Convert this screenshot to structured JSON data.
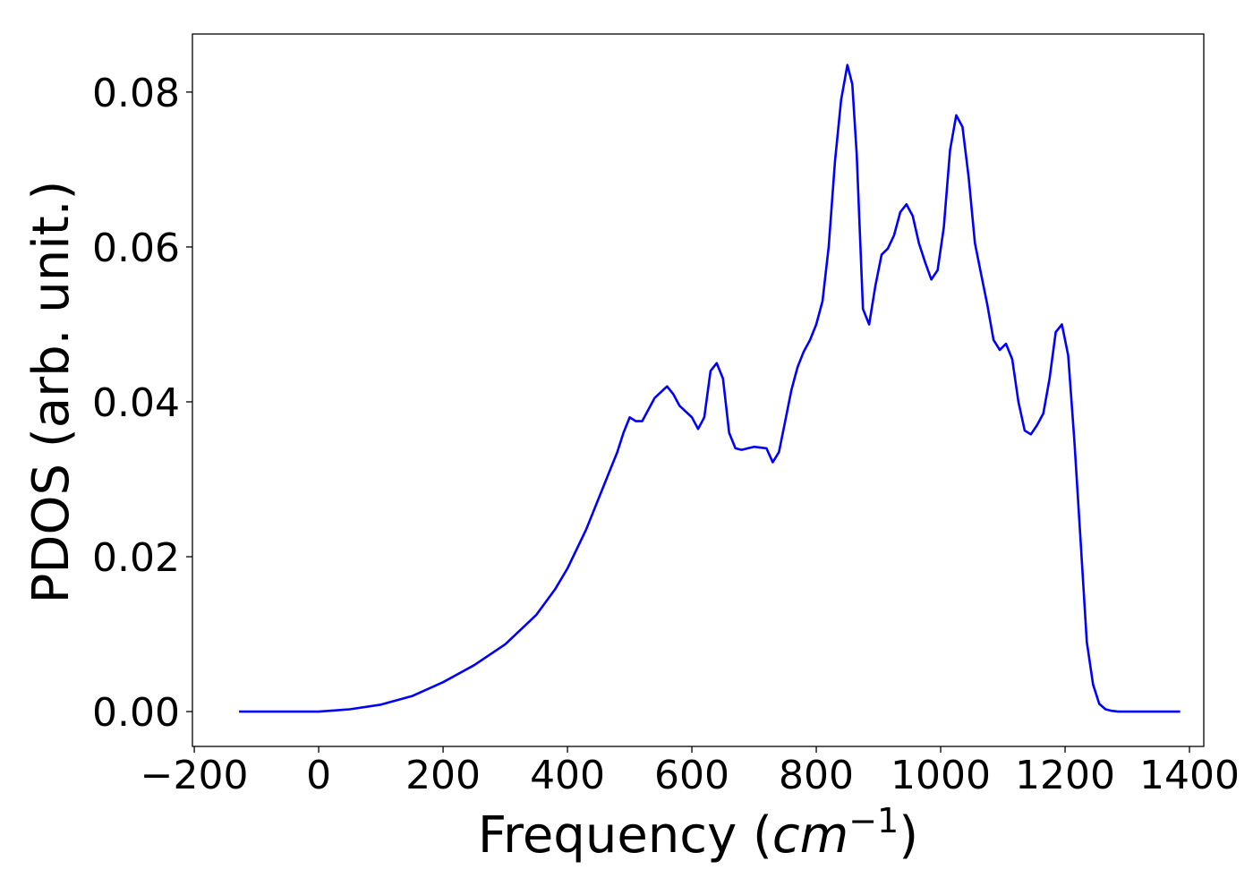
{
  "chart_data": {
    "type": "line",
    "title": "",
    "xlabel_text": "Frequency (",
    "xlabel_unit": "cm",
    "xlabel_exp": "−1",
    "xlabel_close": ")",
    "ylabel": "PDOS (arb. unit.)",
    "xlim": [
      -203,
      1423
    ],
    "ylim": [
      -0.0045,
      0.0875
    ],
    "xticks": [
      -200,
      0,
      200,
      400,
      600,
      800,
      1000,
      1200,
      1400
    ],
    "xtick_labels": [
      "−200",
      "0",
      "200",
      "400",
      "600",
      "800",
      "1000",
      "1200",
      "1400"
    ],
    "yticks": [
      0.0,
      0.02,
      0.04,
      0.06,
      0.08
    ],
    "ytick_labels": [
      "0.00",
      "0.02",
      "0.04",
      "0.06",
      "0.08"
    ],
    "grid": false,
    "series": [
      {
        "color": "#0000ff",
        "x": [
          -128,
          0,
          50,
          100,
          150,
          200,
          250,
          300,
          350,
          380,
          400,
          430,
          450,
          470,
          480,
          490,
          500,
          510,
          520,
          540,
          560,
          570,
          580,
          600,
          610,
          620,
          630,
          640,
          650,
          660,
          670,
          680,
          690,
          700,
          720,
          730,
          740,
          750,
          760,
          770,
          780,
          790,
          800,
          810,
          820,
          830,
          840,
          850,
          858,
          865,
          875,
          885,
          895,
          905,
          915,
          925,
          935,
          945,
          955,
          965,
          975,
          985,
          995,
          1005,
          1015,
          1025,
          1035,
          1045,
          1055,
          1065,
          1075,
          1085,
          1095,
          1105,
          1115,
          1125,
          1135,
          1145,
          1155,
          1165,
          1175,
          1185,
          1195,
          1205,
          1215,
          1225,
          1235,
          1245,
          1255,
          1265,
          1275,
          1285,
          1295,
          1305,
          1385
        ],
        "y": [
          0.0,
          0.0,
          0.0003,
          0.0009,
          0.002,
          0.0038,
          0.006,
          0.0087,
          0.0125,
          0.0158,
          0.0185,
          0.0235,
          0.0275,
          0.0315,
          0.0335,
          0.036,
          0.038,
          0.0375,
          0.0375,
          0.0405,
          0.042,
          0.041,
          0.0395,
          0.038,
          0.0365,
          0.038,
          0.044,
          0.045,
          0.043,
          0.036,
          0.034,
          0.0338,
          0.034,
          0.0342,
          0.034,
          0.0322,
          0.0335,
          0.0375,
          0.0415,
          0.0445,
          0.0465,
          0.048,
          0.05,
          0.053,
          0.06,
          0.071,
          0.079,
          0.0835,
          0.081,
          0.072,
          0.052,
          0.05,
          0.055,
          0.059,
          0.0598,
          0.0615,
          0.0645,
          0.0655,
          0.064,
          0.0605,
          0.058,
          0.0558,
          0.057,
          0.0625,
          0.0725,
          0.077,
          0.0755,
          0.069,
          0.0605,
          0.0565,
          0.0525,
          0.048,
          0.0467,
          0.0475,
          0.0455,
          0.04,
          0.0363,
          0.0358,
          0.037,
          0.0385,
          0.043,
          0.049,
          0.05,
          0.046,
          0.035,
          0.022,
          0.009,
          0.0035,
          0.001,
          0.0003,
          0.0001,
          0.0,
          0.0,
          0.0,
          0.0
        ]
      }
    ]
  }
}
